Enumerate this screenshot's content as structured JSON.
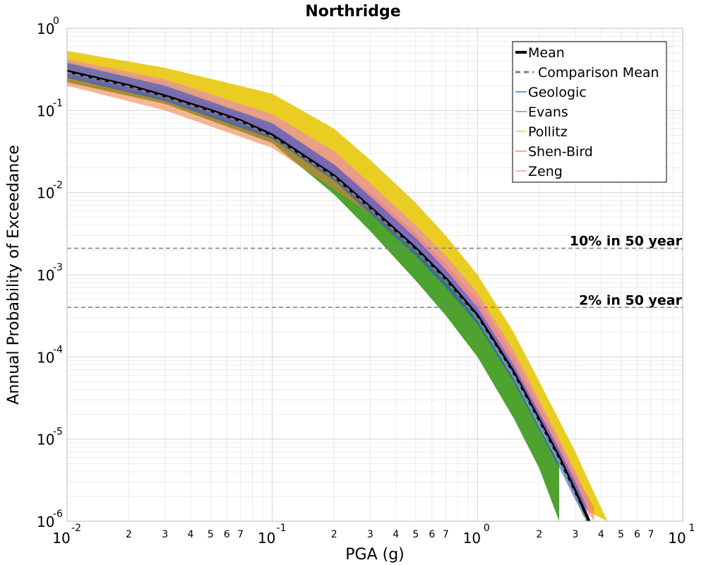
{
  "chart_data": {
    "type": "line",
    "title": "Northridge",
    "xlabel": "PGA (g)",
    "ylabel": "Annual Probability of Exceedance",
    "x_scale": "log",
    "y_scale": "log",
    "xlim": [
      0.01,
      10
    ],
    "ylim": [
      1e-06,
      1
    ],
    "grid": true,
    "legend_position": "top-right",
    "x_ticks": [
      {
        "value": 0.01,
        "base": "10",
        "exp": "-2"
      },
      {
        "value": 0.1,
        "base": "10",
        "exp": "-1"
      },
      {
        "value": 1,
        "base": "10",
        "exp": "0"
      },
      {
        "value": 10,
        "base": "10",
        "exp": "1"
      }
    ],
    "x_minor_ticks": [
      {
        "value": 0.02,
        "label": "2"
      },
      {
        "value": 0.03,
        "label": "3"
      },
      {
        "value": 0.04,
        "label": "4"
      },
      {
        "value": 0.05,
        "label": "5"
      },
      {
        "value": 0.06,
        "label": "6"
      },
      {
        "value": 0.07,
        "label": "7"
      },
      {
        "value": 0.2,
        "label": "2"
      },
      {
        "value": 0.3,
        "label": "3"
      },
      {
        "value": 0.4,
        "label": "4"
      },
      {
        "value": 0.5,
        "label": "5"
      },
      {
        "value": 0.6,
        "label": "6"
      },
      {
        "value": 0.7,
        "label": "7"
      },
      {
        "value": 2,
        "label": "2"
      },
      {
        "value": 3,
        "label": "3"
      },
      {
        "value": 4,
        "label": "4"
      },
      {
        "value": 5,
        "label": "5"
      },
      {
        "value": 6,
        "label": "6"
      },
      {
        "value": 7,
        "label": "7"
      }
    ],
    "y_ticks": [
      {
        "value": 1,
        "base": "10",
        "exp": "0"
      },
      {
        "value": 0.1,
        "base": "10",
        "exp": "-1"
      },
      {
        "value": 0.01,
        "base": "10",
        "exp": "-2"
      },
      {
        "value": 0.001,
        "base": "10",
        "exp": "-3"
      },
      {
        "value": 0.0001,
        "base": "10",
        "exp": "-4"
      },
      {
        "value": 1e-05,
        "base": "10",
        "exp": "-5"
      },
      {
        "value": 1e-06,
        "base": "10",
        "exp": "-6"
      }
    ],
    "reference_lines": [
      {
        "label": "10% in 50 year",
        "y": 0.0021,
        "color": "#808080"
      },
      {
        "label": "2% in 50 year",
        "y": 0.0004,
        "color": "#808080"
      }
    ],
    "series": [
      {
        "name": "Mean",
        "color": "#000000",
        "style": "solid",
        "x": [
          0.01,
          0.02,
          0.03,
          0.05,
          0.07,
          0.1,
          0.2,
          0.3,
          0.5,
          0.7,
          1,
          1.5,
          2,
          2.5,
          3,
          3.5
        ],
        "y": [
          0.3,
          0.2,
          0.15,
          0.1,
          0.075,
          0.05,
          0.016,
          0.0066,
          0.0021,
          0.0009,
          0.00032,
          6.5e-05,
          1.7e-05,
          6e-06,
          2.3e-06,
          1e-06
        ]
      },
      {
        "name": "Comparison Mean",
        "color": "#808080",
        "style": "dashed",
        "x": [
          0.01,
          0.02,
          0.03,
          0.05,
          0.07,
          0.1,
          0.2,
          0.3,
          0.5,
          0.7,
          1,
          1.5,
          2,
          2.5,
          3,
          3.4
        ],
        "y": [
          0.29,
          0.195,
          0.145,
          0.097,
          0.073,
          0.048,
          0.0155,
          0.0064,
          0.002,
          0.00086,
          0.0003,
          6.1e-05,
          1.6e-05,
          5.6e-06,
          2.1e-06,
          1e-06
        ]
      },
      {
        "name": "Geologic",
        "color": "#1f4fd1",
        "style": "band",
        "x": [
          0.01,
          0.03,
          0.1,
          0.2,
          0.3,
          0.5,
          0.7,
          1,
          1.5,
          2,
          2.5,
          3,
          3.4
        ],
        "y_low": [
          0.25,
          0.13,
          0.045,
          0.014,
          0.0055,
          0.0017,
          0.0007,
          0.00025,
          5e-05,
          1.3e-05,
          4.5e-06,
          1.8e-06,
          1e-06
        ],
        "y_high": [
          0.38,
          0.2,
          0.07,
          0.022,
          0.009,
          0.0028,
          0.00115,
          0.0004,
          8e-05,
          2.1e-05,
          7.5e-06,
          3e-06,
          1.5e-06
        ]
      },
      {
        "name": "Evans",
        "color": "#3f9b1e",
        "style": "band",
        "x": [
          0.01,
          0.03,
          0.1,
          0.2,
          0.3,
          0.5,
          0.7,
          1,
          1.5,
          2,
          2.5
        ],
        "y_low": [
          0.22,
          0.12,
          0.04,
          0.0095,
          0.0034,
          0.00085,
          0.00032,
          0.0001,
          1.8e-05,
          4.4e-06,
          1e-06
        ],
        "y_high": [
          0.4,
          0.22,
          0.07,
          0.02,
          0.0075,
          0.0022,
          0.0009,
          0.00028,
          5.5e-05,
          1.4e-05,
          5e-06
        ]
      },
      {
        "name": "Pollitz",
        "color": "#e8c90f",
        "style": "band",
        "x": [
          0.01,
          0.03,
          0.1,
          0.2,
          0.3,
          0.5,
          0.7,
          1,
          1.5,
          2,
          2.5,
          3,
          3.5,
          4.3
        ],
        "y_low": [
          0.28,
          0.16,
          0.055,
          0.018,
          0.0075,
          0.0025,
          0.0011,
          0.0004,
          8e-05,
          2e-05,
          7e-06,
          2.8e-06,
          1.3e-06,
          1e-06
        ],
        "y_high": [
          0.53,
          0.33,
          0.16,
          0.06,
          0.025,
          0.0075,
          0.003,
          0.001,
          0.0002,
          5e-05,
          1.7e-05,
          7e-06,
          3e-06,
          1e-06
        ]
      },
      {
        "name": "Shen-Bird",
        "color": "#ee7a3a",
        "style": "band",
        "x": [
          0.01,
          0.03,
          0.1,
          0.2,
          0.3,
          0.5,
          0.7,
          1,
          1.5,
          2,
          2.5,
          3,
          3.7
        ],
        "y_low": [
          0.2,
          0.1,
          0.035,
          0.011,
          0.0055,
          0.0019,
          0.0008,
          0.0003,
          6e-05,
          1.6e-05,
          5.5e-06,
          2.2e-06,
          1e-06
        ],
        "y_high": [
          0.3,
          0.18,
          0.065,
          0.022,
          0.01,
          0.0032,
          0.00135,
          0.0005,
          0.0001,
          2.6e-05,
          9e-06,
          3.6e-06,
          1.5e-06
        ]
      },
      {
        "name": "Zeng",
        "color": "#e57ad8",
        "style": "band",
        "x": [
          0.01,
          0.03,
          0.1,
          0.2,
          0.3,
          0.5,
          0.7,
          1,
          1.5,
          2,
          2.5,
          3,
          3.5
        ],
        "y_low": [
          0.26,
          0.14,
          0.05,
          0.016,
          0.0065,
          0.002,
          0.00085,
          0.0003,
          6e-05,
          1.6e-05,
          5.5e-06,
          2.2e-06,
          1e-06
        ],
        "y_high": [
          0.42,
          0.24,
          0.09,
          0.032,
          0.013,
          0.004,
          0.0017,
          0.0006,
          0.00012,
          3e-05,
          1e-05,
          4e-06,
          1.8e-06
        ]
      }
    ]
  }
}
